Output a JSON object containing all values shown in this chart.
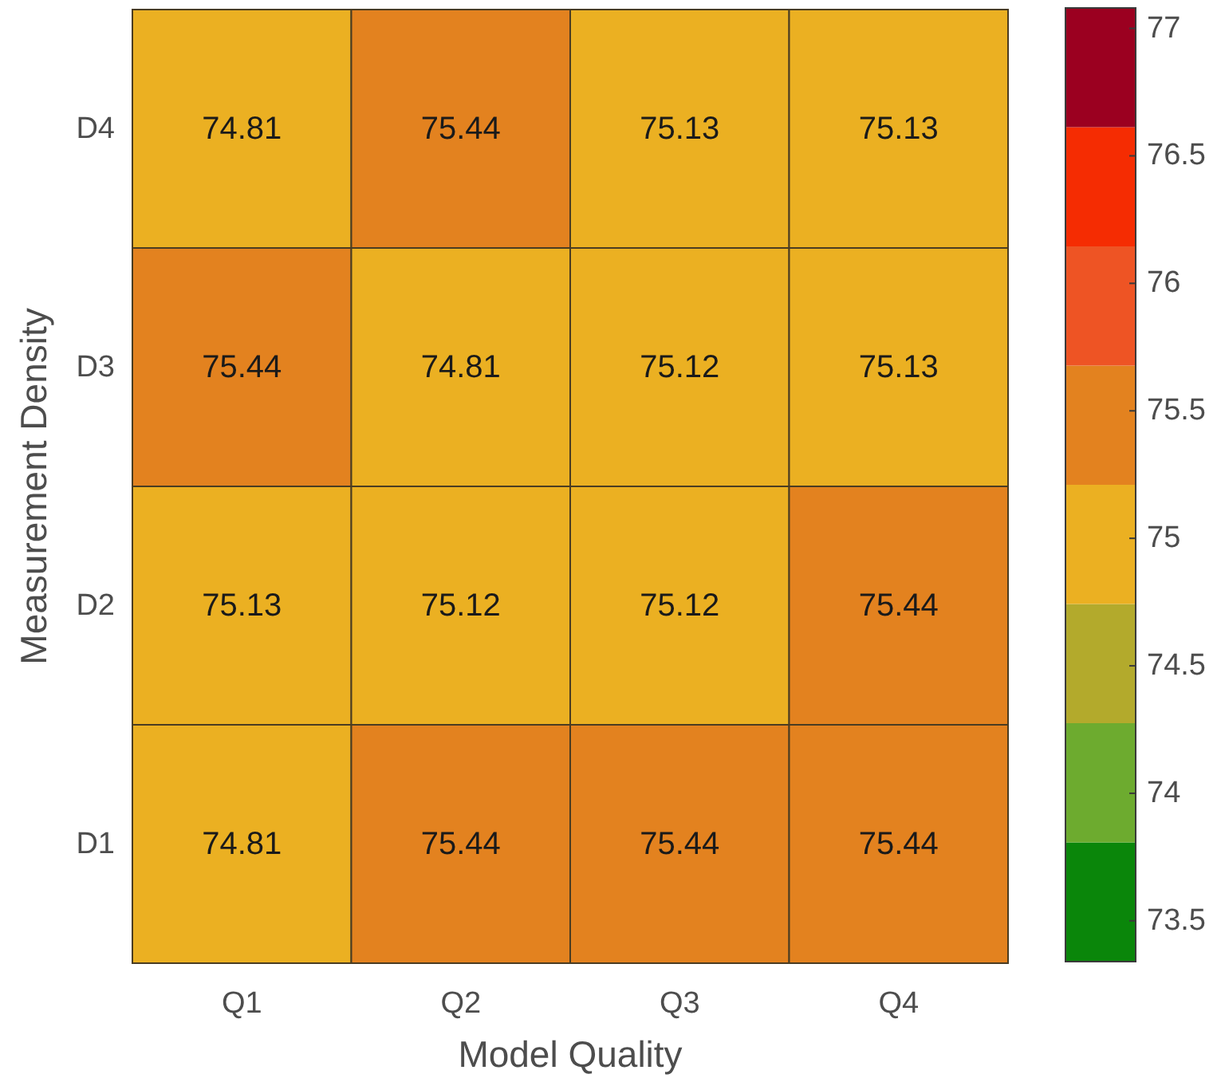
{
  "chart_data": {
    "type": "heatmap",
    "xlabel": "Model Quality",
    "ylabel": "Measurement Density",
    "categories": [
      "Q1",
      "Q2",
      "Q3",
      "Q4"
    ],
    "y_categories": [
      "D4",
      "D3",
      "D2",
      "D1"
    ],
    "cells": [
      [
        74.81,
        75.44,
        75.13,
        75.13
      ],
      [
        75.44,
        74.81,
        75.12,
        75.13
      ],
      [
        75.13,
        75.12,
        75.12,
        75.44
      ],
      [
        74.81,
        75.44,
        75.44,
        75.44
      ]
    ],
    "data_labels": true,
    "clim": [
      73.34,
      77.08
    ],
    "cticks": [
      73.5,
      74,
      74.5,
      75,
      75.5,
      76,
      76.5,
      77
    ],
    "colors": [
      "#0a860a",
      "#6dab2f",
      "#b3aa2c",
      "#ebb022",
      "#e3821f",
      "#ee5424",
      "#f52c02",
      "#9b0020"
    ]
  }
}
